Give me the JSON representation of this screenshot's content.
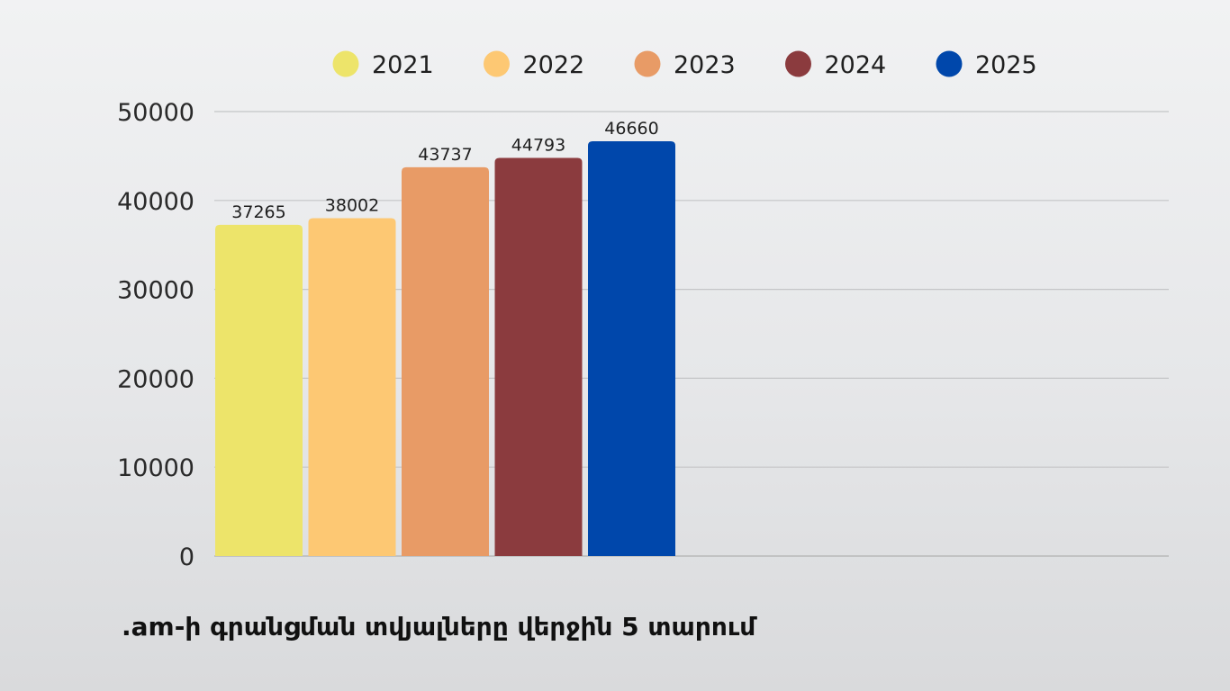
{
  "chart_data": {
    "type": "bar",
    "title": ".am-ի գրանցման տվյալները վերջին 5 տարում",
    "xlabel": "",
    "ylabel": "",
    "ylim": [
      0,
      50000
    ],
    "yticks": [
      "0",
      "10000",
      "20000",
      "30000",
      "40000",
      "50000"
    ],
    "grid": true,
    "legend_position": "top",
    "series": [
      {
        "name": "2021",
        "value": 37265,
        "label": "37265",
        "color": "#ede46a"
      },
      {
        "name": "2022",
        "value": 38002,
        "label": "38002",
        "color": "#fdc873"
      },
      {
        "name": "2023",
        "value": 43737,
        "label": "43737",
        "color": "#e89b66"
      },
      {
        "name": "2024",
        "value": 44793,
        "label": "44793",
        "color": "#8b3b3e"
      },
      {
        "name": "2025",
        "value": 46660,
        "label": "46660",
        "color": "#0047ab"
      }
    ]
  }
}
